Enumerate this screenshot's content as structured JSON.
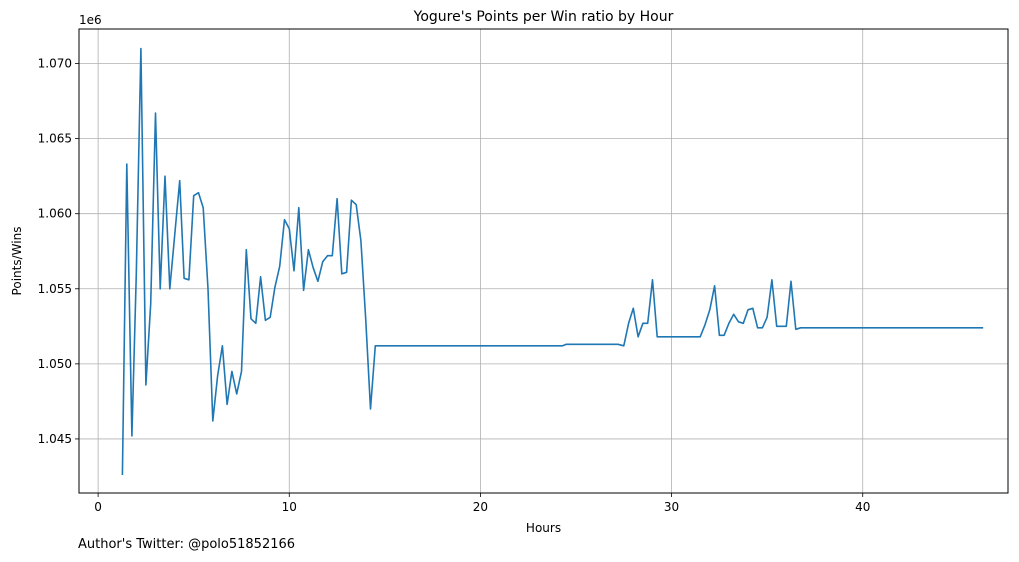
{
  "chart_data": {
    "type": "line",
    "title": "Yogure's Points per Win ratio by Hour",
    "xlabel": "Hours",
    "ylabel": "Points/Wins",
    "offset_label": "1e6",
    "xlim": [
      -1.0,
      47.6
    ],
    "ylim": [
      1.0414,
      1.0723
    ],
    "xticks": [
      0,
      10,
      20,
      30,
      40
    ],
    "yticks": [
      1.045,
      1.05,
      1.055,
      1.06,
      1.065,
      1.07
    ],
    "ytick_labels": [
      "1.045",
      "1.050",
      "1.055",
      "1.060",
      "1.065",
      "1.070"
    ],
    "grid": true,
    "line_color": "#1f77b4",
    "series": [
      {
        "x": [
          1.27,
          1.5,
          1.77,
          2.0,
          2.24,
          2.5,
          2.75,
          3.0,
          3.25,
          3.5,
          3.75,
          4.0,
          4.27,
          4.5,
          4.75,
          5.0,
          5.25,
          5.5,
          5.75,
          6.0,
          6.25,
          6.5,
          6.75,
          7.0,
          7.25,
          7.5,
          7.75,
          8.0,
          8.25,
          8.5,
          8.75,
          9.0,
          9.25,
          9.5,
          9.75,
          10.0,
          10.25,
          10.5,
          10.75,
          11.0,
          11.25,
          11.5,
          11.75,
          12.0,
          12.25,
          12.5,
          12.75,
          13.0,
          13.25,
          13.5,
          13.75,
          14.0,
          14.25,
          14.5,
          24.3,
          24.5,
          27.2,
          27.5,
          27.75,
          28.0,
          28.25,
          28.5,
          28.75,
          29.0,
          29.25,
          29.5,
          31.3,
          31.5,
          31.75,
          32.0,
          32.25,
          32.5,
          32.75,
          33.0,
          33.25,
          33.5,
          33.75,
          34.0,
          34.25,
          34.5,
          34.75,
          35.0,
          35.25,
          35.5,
          35.75,
          36.0,
          36.25,
          36.5,
          36.75,
          46.3
        ],
        "values": [
          1.0426,
          1.0633,
          1.0452,
          1.056,
          1.071,
          1.0486,
          1.054,
          1.0667,
          1.055,
          1.0625,
          1.055,
          1.0585,
          1.0622,
          1.0557,
          1.0556,
          1.0612,
          1.0614,
          1.0604,
          1.055,
          1.0462,
          1.0492,
          1.0512,
          1.0473,
          1.0495,
          1.048,
          1.0495,
          1.0576,
          1.053,
          1.0527,
          1.0558,
          1.0529,
          1.0531,
          1.0551,
          1.0565,
          1.0596,
          1.059,
          1.0562,
          1.0604,
          1.0549,
          1.0576,
          1.0564,
          1.0555,
          1.0568,
          1.0572,
          1.0572,
          1.061,
          1.056,
          1.0561,
          1.0609,
          1.0606,
          1.0582,
          1.053,
          1.047,
          1.0512,
          1.0512,
          1.0513,
          1.0513,
          1.0512,
          1.0527,
          1.0537,
          1.0518,
          1.0527,
          1.0527,
          1.0556,
          1.0518,
          1.0518,
          1.0518,
          1.0518,
          1.0526,
          1.0536,
          1.0552,
          1.0519,
          1.0519,
          1.0527,
          1.0533,
          1.0528,
          1.0527,
          1.0536,
          1.0537,
          1.0524,
          1.0524,
          1.0531,
          1.0556,
          1.0525,
          1.0525,
          1.0525,
          1.0555,
          1.0523,
          1.0524,
          1.0524
        ]
      }
    ]
  },
  "footer": "Author's Twitter: @polo51852166"
}
